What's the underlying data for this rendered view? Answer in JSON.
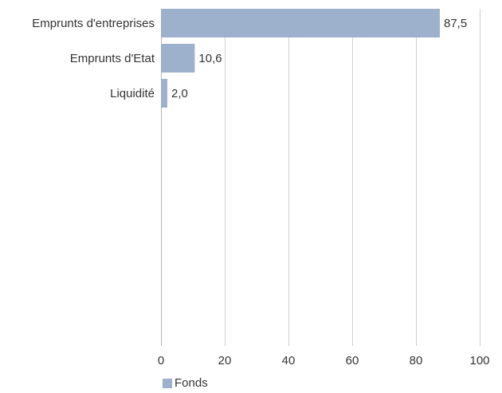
{
  "chart_data": {
    "type": "bar",
    "orientation": "horizontal",
    "categories": [
      "Emprunts d'entreprises",
      "Emprunts d'Etat",
      "Liquidité"
    ],
    "series": [
      {
        "name": "Fonds",
        "values": [
          87.5,
          10.6,
          2.0
        ],
        "value_labels": [
          "87,5",
          "10,6",
          "2,0"
        ]
      }
    ],
    "xlim": [
      0,
      100
    ],
    "x_ticks": [
      0,
      20,
      40,
      60,
      80,
      100
    ],
    "x_tick_labels": [
      "0",
      "20",
      "40",
      "60",
      "80",
      "100"
    ],
    "grid": "vertical",
    "legend_position": "bottom-left",
    "colors": {
      "bar": "#9eb1cc",
      "grid": "#d0d0d0",
      "axis": "#b5b5b5"
    }
  }
}
